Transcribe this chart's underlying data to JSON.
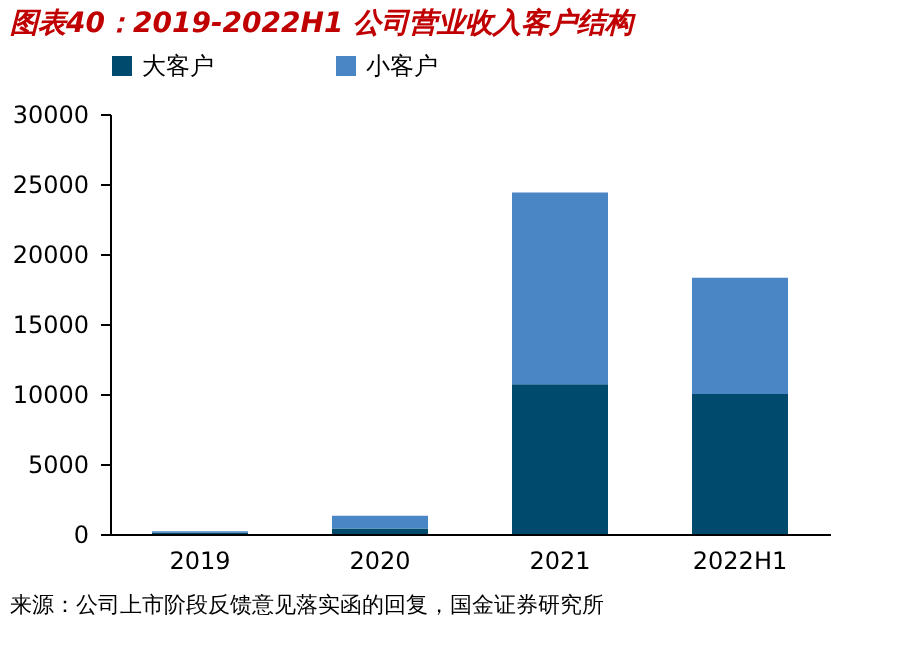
{
  "chart_data": {
    "type": "bar",
    "stacked": true,
    "title": "图表40：2019-2022H1 公司营业收入客户结构",
    "categories": [
      "2019",
      "2020",
      "2021",
      "2022H1"
    ],
    "series": [
      {
        "name": "大客户",
        "color": "#004a6e",
        "values": [
          100,
          400,
          10700,
          10000
        ]
      },
      {
        "name": "小客户",
        "color": "#4a86c5",
        "values": [
          100,
          900,
          13700,
          8300
        ]
      }
    ],
    "ylim": [
      0,
      30000
    ],
    "yticks": [
      0,
      5000,
      10000,
      15000,
      20000,
      25000,
      30000
    ],
    "grid": false,
    "legend": "top",
    "annotations": [
      "来源：公司上市阶段反馈意见落实函的回复，国金证券研究所"
    ]
  }
}
